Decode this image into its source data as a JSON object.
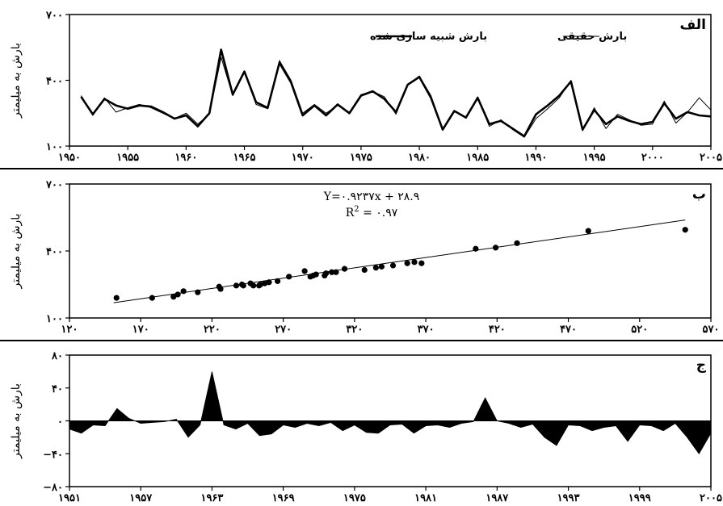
{
  "chart_data": [
    {
      "type": "line",
      "panel_letter": "الف",
      "ylabel": "بارش به میلیمتر",
      "xlim": [
        1950,
        2005
      ],
      "ylim": [
        100,
        700
      ],
      "xticks": [
        1950,
        1955,
        1960,
        1965,
        1970,
        1975,
        1980,
        1985,
        1990,
        1995,
        2000,
        2005
      ],
      "xtick_labels": [
        "۱۹۵۰",
        "۱۹۵۵",
        "۱۹۶۰",
        "۱۹۶۵",
        "۱۹۷۰",
        "۱۹۷۵",
        "۱۹۸۰",
        "۱۹۸۵",
        "۱۹۹۰",
        "۱۹۹۵",
        "۲۰۰۰",
        "۲۰۰۵"
      ],
      "yticks": [
        100,
        400,
        700
      ],
      "ytick_labels": [
        "۱۰۰",
        "۴۰۰",
        "۷۰۰"
      ],
      "x": [
        1951,
        1952,
        1953,
        1954,
        1955,
        1956,
        1957,
        1958,
        1959,
        1960,
        1961,
        1962,
        1963,
        1964,
        1965,
        1966,
        1967,
        1968,
        1969,
        1970,
        1971,
        1972,
        1973,
        1974,
        1975,
        1976,
        1977,
        1978,
        1979,
        1980,
        1981,
        1982,
        1983,
        1984,
        1985,
        1986,
        1987,
        1988,
        1989,
        1990,
        1991,
        1992,
        1993,
        1994,
        1995,
        1996,
        1997,
        1998,
        1999,
        2000,
        2001,
        2002,
        2003,
        2004,
        2005
      ],
      "series": [
        {
          "name": "بارش شبیه سازی شده",
          "style": "thick",
          "values": [
            325,
            245,
            315,
            285,
            270,
            285,
            280,
            255,
            225,
            240,
            190,
            250,
            540,
            335,
            440,
            300,
            275,
            480,
            390,
            240,
            285,
            240,
            290,
            250,
            330,
            350,
            315,
            255,
            380,
            415,
            320,
            175,
            260,
            230,
            320,
            200,
            215,
            180,
            145,
            245,
            285,
            330,
            395,
            175,
            265,
            200,
            235,
            215,
            200,
            210,
            295,
            225,
            255,
            240,
            235
          ]
        },
        {
          "name": "بارش حقیقی",
          "style": "thin",
          "values": [
            330,
            240,
            320,
            255,
            275,
            290,
            275,
            250,
            225,
            250,
            200,
            245,
            505,
            330,
            435,
            290,
            270,
            490,
            400,
            250,
            290,
            250,
            285,
            255,
            335,
            350,
            325,
            245,
            380,
            420,
            330,
            180,
            260,
            230,
            325,
            190,
            220,
            175,
            140,
            225,
            270,
            320,
            400,
            170,
            275,
            180,
            245,
            220,
            195,
            200,
            305,
            205,
            255,
            320,
            265
          ]
        }
      ]
    },
    {
      "type": "scatter",
      "panel_letter": "ب",
      "ylabel": "بارش به میلیمتر",
      "xlim": [
        120,
        570
      ],
      "ylim": [
        100,
        700
      ],
      "xticks": [
        120,
        170,
        220,
        270,
        320,
        370,
        420,
        470,
        520,
        570
      ],
      "xtick_labels": [
        "۱۲۰",
        "۱۷۰",
        "۲۲۰",
        "۲۷۰",
        "۳۲۰",
        "۳۷۰",
        "۴۲۰",
        "۴۷۰",
        "۵۲۰",
        "۵۷۰"
      ],
      "yticks": [
        100,
        400,
        700
      ],
      "ytick_labels": [
        "۱۰۰",
        "۴۰۰",
        "۷۰۰"
      ],
      "equation": "Y=۰.۹۲۳۷x + ۲۸.۹",
      "r2_label": "R",
      "r2_sup": "2",
      "r2_value": " = ۰.۹۷",
      "fit": {
        "slope": 0.9237,
        "intercept": 28.9
      },
      "points_x": [
        153,
        178,
        193,
        196,
        200,
        210,
        225,
        226,
        237,
        241,
        242,
        247,
        249,
        253,
        254,
        257,
        260,
        266,
        274,
        285,
        289,
        291,
        293,
        299,
        300,
        304,
        307,
        313,
        327,
        335,
        339,
        347,
        357,
        362,
        367,
        405,
        419,
        434,
        484,
        552
      ],
      "points_y": [
        190,
        190,
        195,
        205,
        220,
        215,
        240,
        230,
        245,
        250,
        245,
        255,
        245,
        245,
        250,
        255,
        260,
        265,
        285,
        310,
        285,
        290,
        295,
        290,
        300,
        305,
        305,
        320,
        315,
        325,
        330,
        335,
        345,
        350,
        345,
        410,
        415,
        435,
        490,
        495
      ]
    },
    {
      "type": "area",
      "panel_letter": "ج",
      "ylabel": "بارش به میلیمتر",
      "xlim": [
        1951,
        2005
      ],
      "ylim": [
        -80,
        80
      ],
      "xticks": [
        1951,
        1957,
        1963,
        1969,
        1975,
        1981,
        1987,
        1993,
        1999,
        2005
      ],
      "xtick_labels": [
        "۱۹۵۱",
        "۱۹۵۷",
        "۱۹۶۳",
        "۱۹۶۹",
        "۱۹۷۵",
        "۱۹۸۱",
        "۱۹۸۷",
        "۱۹۹۳",
        "۱۹۹۹",
        "۲۰۰۵"
      ],
      "yticks": [
        80,
        40,
        0,
        -40,
        -80
      ],
      "ytick_labels": [
        "۸۰",
        "۴۰",
        "۰",
        "−۴۰",
        "−۸۰"
      ],
      "x": [
        1951,
        1952,
        1953,
        1954,
        1955,
        1956,
        1957,
        1958,
        1959,
        1960,
        1961,
        1962,
        1963,
        1964,
        1965,
        1966,
        1967,
        1968,
        1969,
        1970,
        1971,
        1972,
        1973,
        1974,
        1975,
        1976,
        1977,
        1978,
        1979,
        1980,
        1981,
        1982,
        1983,
        1984,
        1985,
        1986,
        1987,
        1988,
        1989,
        1990,
        1991,
        1992,
        1993,
        1994,
        1995,
        1996,
        1997,
        1998,
        1999,
        2000,
        2001,
        2002,
        2003,
        2004,
        2005
      ],
      "values": [
        -10,
        -15,
        -5,
        -6,
        15,
        3,
        -3,
        -2,
        -1,
        2,
        -20,
        -5,
        60,
        -5,
        -10,
        -3,
        -18,
        -16,
        -5,
        -8,
        -3,
        -6,
        -2,
        -12,
        -5,
        -14,
        -15,
        -5,
        -4,
        -15,
        -6,
        -5,
        -8,
        -3,
        -1,
        28,
        0,
        -3,
        -8,
        -4,
        -20,
        -30,
        -5,
        -6,
        -12,
        -8,
        -6,
        -25,
        -5,
        -6,
        -12,
        -3,
        -20,
        -40,
        -15
      ]
    }
  ]
}
